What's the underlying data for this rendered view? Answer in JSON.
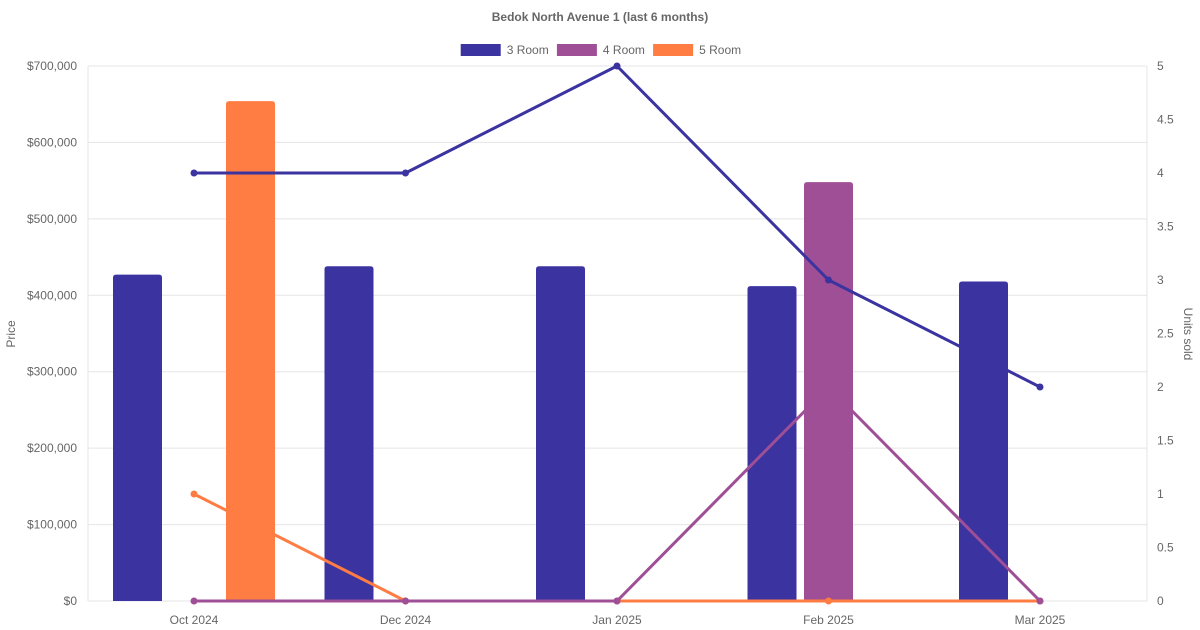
{
  "chart_data": {
    "type": "bar",
    "title": "Bedok North Avenue 1 (last 6 months)",
    "categories": [
      "Oct 2024",
      "Dec 2024",
      "Jan 2025",
      "Feb 2025",
      "Mar 2025"
    ],
    "y_left": {
      "label": "Price",
      "ylim": [
        0,
        700000
      ],
      "ticks": [
        0,
        100000,
        200000,
        300000,
        400000,
        500000,
        600000,
        700000
      ],
      "tick_labels": [
        "$0",
        "$100,000",
        "$200,000",
        "$300,000",
        "$400,000",
        "$500,000",
        "$600,000",
        "$700,000"
      ]
    },
    "y_right": {
      "label": "Units sold",
      "ylim": [
        0,
        5
      ],
      "ticks": [
        0,
        0.5,
        1,
        1.5,
        2,
        2.5,
        3,
        3.5,
        4,
        4.5,
        5
      ],
      "tick_labels": [
        "0",
        "0.5",
        "1",
        "1.5",
        "2",
        "2.5",
        "3",
        "3.5",
        "4",
        "4.5",
        "5"
      ]
    },
    "grid": true,
    "legend_position": "top-center",
    "series": [
      {
        "name": "3 Room",
        "color": "#3a33a0",
        "price": [
          427000,
          438000,
          438000,
          412000,
          418000
        ],
        "units": [
          4,
          4,
          5,
          3,
          2
        ]
      },
      {
        "name": "4 Room",
        "color": "#9e4f96",
        "price": [
          null,
          null,
          null,
          548000,
          null
        ],
        "units": [
          0,
          0,
          0,
          2,
          0
        ]
      },
      {
        "name": "5 Room",
        "color": "#ff7c43",
        "price": [
          654000,
          null,
          null,
          null,
          null
        ],
        "units": [
          1,
          0,
          0,
          0,
          0
        ]
      }
    ]
  }
}
